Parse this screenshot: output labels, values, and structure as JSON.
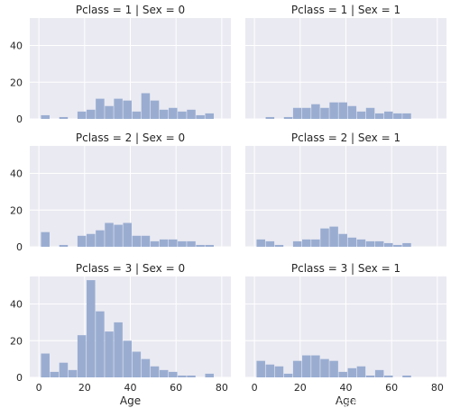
{
  "chart_data": [
    {
      "type": "bar",
      "title": "Pclass = 1 | Sex = 0",
      "xlabel": "",
      "ylabel": "",
      "xlim": [
        -4,
        84
      ],
      "ylim": [
        0,
        55
      ],
      "bin_width": 3.99,
      "x": [
        0.92,
        4.91,
        8.9,
        12.89,
        16.88,
        20.87,
        24.86,
        28.85,
        32.84,
        36.83,
        40.82,
        44.81,
        48.8,
        52.79,
        56.78,
        60.77,
        64.76,
        68.75,
        72.74,
        76.73
      ],
      "values": [
        2,
        0,
        1,
        0,
        4,
        5,
        11,
        7,
        11,
        10,
        4,
        14,
        10,
        5,
        6,
        4,
        5,
        2,
        3,
        0
      ],
      "xticks": [],
      "yticks": [
        "0",
        "20",
        "40"
      ]
    },
    {
      "type": "bar",
      "title": "Pclass = 1 | Sex = 1",
      "xlabel": "",
      "ylabel": "",
      "xlim": [
        -4,
        84
      ],
      "ylim": [
        0,
        55
      ],
      "bin_width": 3.99,
      "x": [
        0.92,
        4.91,
        8.9,
        12.89,
        16.88,
        20.87,
        24.86,
        28.85,
        32.84,
        36.83,
        40.82,
        44.81,
        48.8,
        52.79,
        56.78,
        60.77,
        64.76,
        68.75,
        72.74,
        76.73
      ],
      "values": [
        0,
        1,
        0,
        1,
        6,
        6,
        8,
        6,
        9,
        9,
        7,
        4,
        6,
        3,
        4,
        3,
        3,
        0,
        0,
        0
      ],
      "xticks": [],
      "yticks": []
    },
    {
      "type": "bar",
      "title": "Pclass = 2 | Sex = 0",
      "xlabel": "",
      "ylabel": "",
      "xlim": [
        -4,
        84
      ],
      "ylim": [
        0,
        55
      ],
      "bin_width": 3.99,
      "x": [
        0.92,
        4.91,
        8.9,
        12.89,
        16.88,
        20.87,
        24.86,
        28.85,
        32.84,
        36.83,
        40.82,
        44.81,
        48.8,
        52.79,
        56.78,
        60.77,
        64.76,
        68.75,
        72.74,
        76.73
      ],
      "values": [
        8,
        0,
        1,
        0,
        6,
        7,
        9,
        13,
        12,
        13,
        6,
        6,
        3,
        4,
        4,
        3,
        3,
        1,
        1,
        0
      ],
      "xticks": [],
      "yticks": [
        "0",
        "20",
        "40"
      ]
    },
    {
      "type": "bar",
      "title": "Pclass = 2 | Sex = 1",
      "xlabel": "",
      "ylabel": "",
      "xlim": [
        -4,
        84
      ],
      "ylim": [
        0,
        55
      ],
      "bin_width": 3.99,
      "x": [
        0.92,
        4.91,
        8.9,
        12.89,
        16.88,
        20.87,
        24.86,
        28.85,
        32.84,
        36.83,
        40.82,
        44.81,
        48.8,
        52.79,
        56.78,
        60.77,
        64.76,
        68.75,
        72.74,
        76.73
      ],
      "values": [
        4,
        3,
        1,
        0,
        3,
        4,
        4,
        10,
        11,
        7,
        5,
        4,
        3,
        3,
        2,
        1,
        2,
        0,
        0,
        0
      ],
      "xticks": [],
      "yticks": []
    },
    {
      "type": "bar",
      "title": "Pclass = 3 | Sex = 0",
      "xlabel": "Age",
      "ylabel": "",
      "xlim": [
        -4,
        84
      ],
      "ylim": [
        0,
        55
      ],
      "bin_width": 3.99,
      "x": [
        0.92,
        4.91,
        8.9,
        12.89,
        16.88,
        20.87,
        24.86,
        28.85,
        32.84,
        36.83,
        40.82,
        44.81,
        48.8,
        52.79,
        56.78,
        60.77,
        64.76,
        68.75,
        72.74,
        76.73
      ],
      "values": [
        13,
        3,
        8,
        4,
        23,
        53,
        36,
        25,
        30,
        20,
        14,
        10,
        6,
        4,
        3,
        1,
        1,
        0,
        2,
        0
      ],
      "xticks": [
        "0",
        "20",
        "40",
        "60",
        "80"
      ],
      "yticks": [
        "0",
        "20",
        "40"
      ]
    },
    {
      "type": "bar",
      "title": "Pclass = 3 | Sex = 1",
      "xlabel": "Age",
      "ylabel": "",
      "xlim": [
        -4,
        84
      ],
      "ylim": [
        0,
        55
      ],
      "bin_width": 3.99,
      "x": [
        0.92,
        4.91,
        8.9,
        12.89,
        16.88,
        20.87,
        24.86,
        28.85,
        32.84,
        36.83,
        40.82,
        44.81,
        48.8,
        52.79,
        56.78,
        60.77,
        64.76,
        68.75,
        72.74,
        76.73
      ],
      "values": [
        9,
        7,
        6,
        2,
        9,
        12,
        12,
        10,
        9,
        3,
        5,
        6,
        1,
        4,
        1,
        0,
        1,
        0,
        0,
        0
      ],
      "xticks": [
        "0",
        "20",
        "40",
        "60",
        "80"
      ],
      "yticks": []
    }
  ],
  "style": {
    "panel_background": "#eaeaf2",
    "grid_color": "#ffffff",
    "bar_color": "#9aadd1",
    "text_color": "#262626",
    "x_gridlines": [
      0,
      20,
      40,
      60,
      80
    ],
    "y_gridlines": [
      0,
      20,
      40
    ]
  },
  "watermark": "https://blog.csdn.net/Eddy504"
}
